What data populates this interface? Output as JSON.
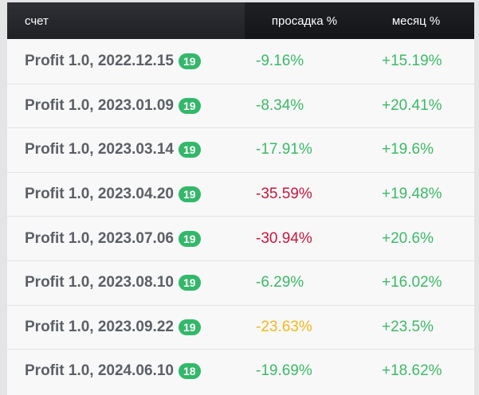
{
  "header": {
    "account": "счет",
    "drawdown": "просадка %",
    "month": "месяц %"
  },
  "colors": {
    "green": "#3cb968",
    "red": "#c8173e",
    "yellow": "#f0b81c",
    "badge": "#33b86a"
  },
  "rows": [
    {
      "account": "Profit 1.0, 2022.12.15",
      "badge": "19",
      "drawdown": "-9.16%",
      "drawdown_color": "green",
      "month": "+15.19%"
    },
    {
      "account": "Profit 1.0, 2023.01.09",
      "badge": "19",
      "drawdown": "-8.34%",
      "drawdown_color": "green",
      "month": "+20.41%"
    },
    {
      "account": "Profit 1.0, 2023.03.14",
      "badge": "19",
      "drawdown": "-17.91%",
      "drawdown_color": "green",
      "month": "+19.6%"
    },
    {
      "account": "Profit 1.0, 2023.04.20",
      "badge": "19",
      "drawdown": "-35.59%",
      "drawdown_color": "red",
      "month": "+19.48%"
    },
    {
      "account": "Profit 1.0, 2023.07.06",
      "badge": "19",
      "drawdown": "-30.94%",
      "drawdown_color": "red",
      "month": "+20.6%"
    },
    {
      "account": "Profit 1.0, 2023.08.10",
      "badge": "19",
      "drawdown": "-6.29%",
      "drawdown_color": "green",
      "month": "+16.02%"
    },
    {
      "account": "Profit 1.0, 2023.09.22",
      "badge": "19",
      "drawdown": "-23.63%",
      "drawdown_color": "yellow",
      "month": "+23.5%"
    },
    {
      "account": "Profit 1.0, 2024.06.10",
      "badge": "18",
      "drawdown": "-19.69%",
      "drawdown_color": "green",
      "month": "+18.62%"
    }
  ]
}
